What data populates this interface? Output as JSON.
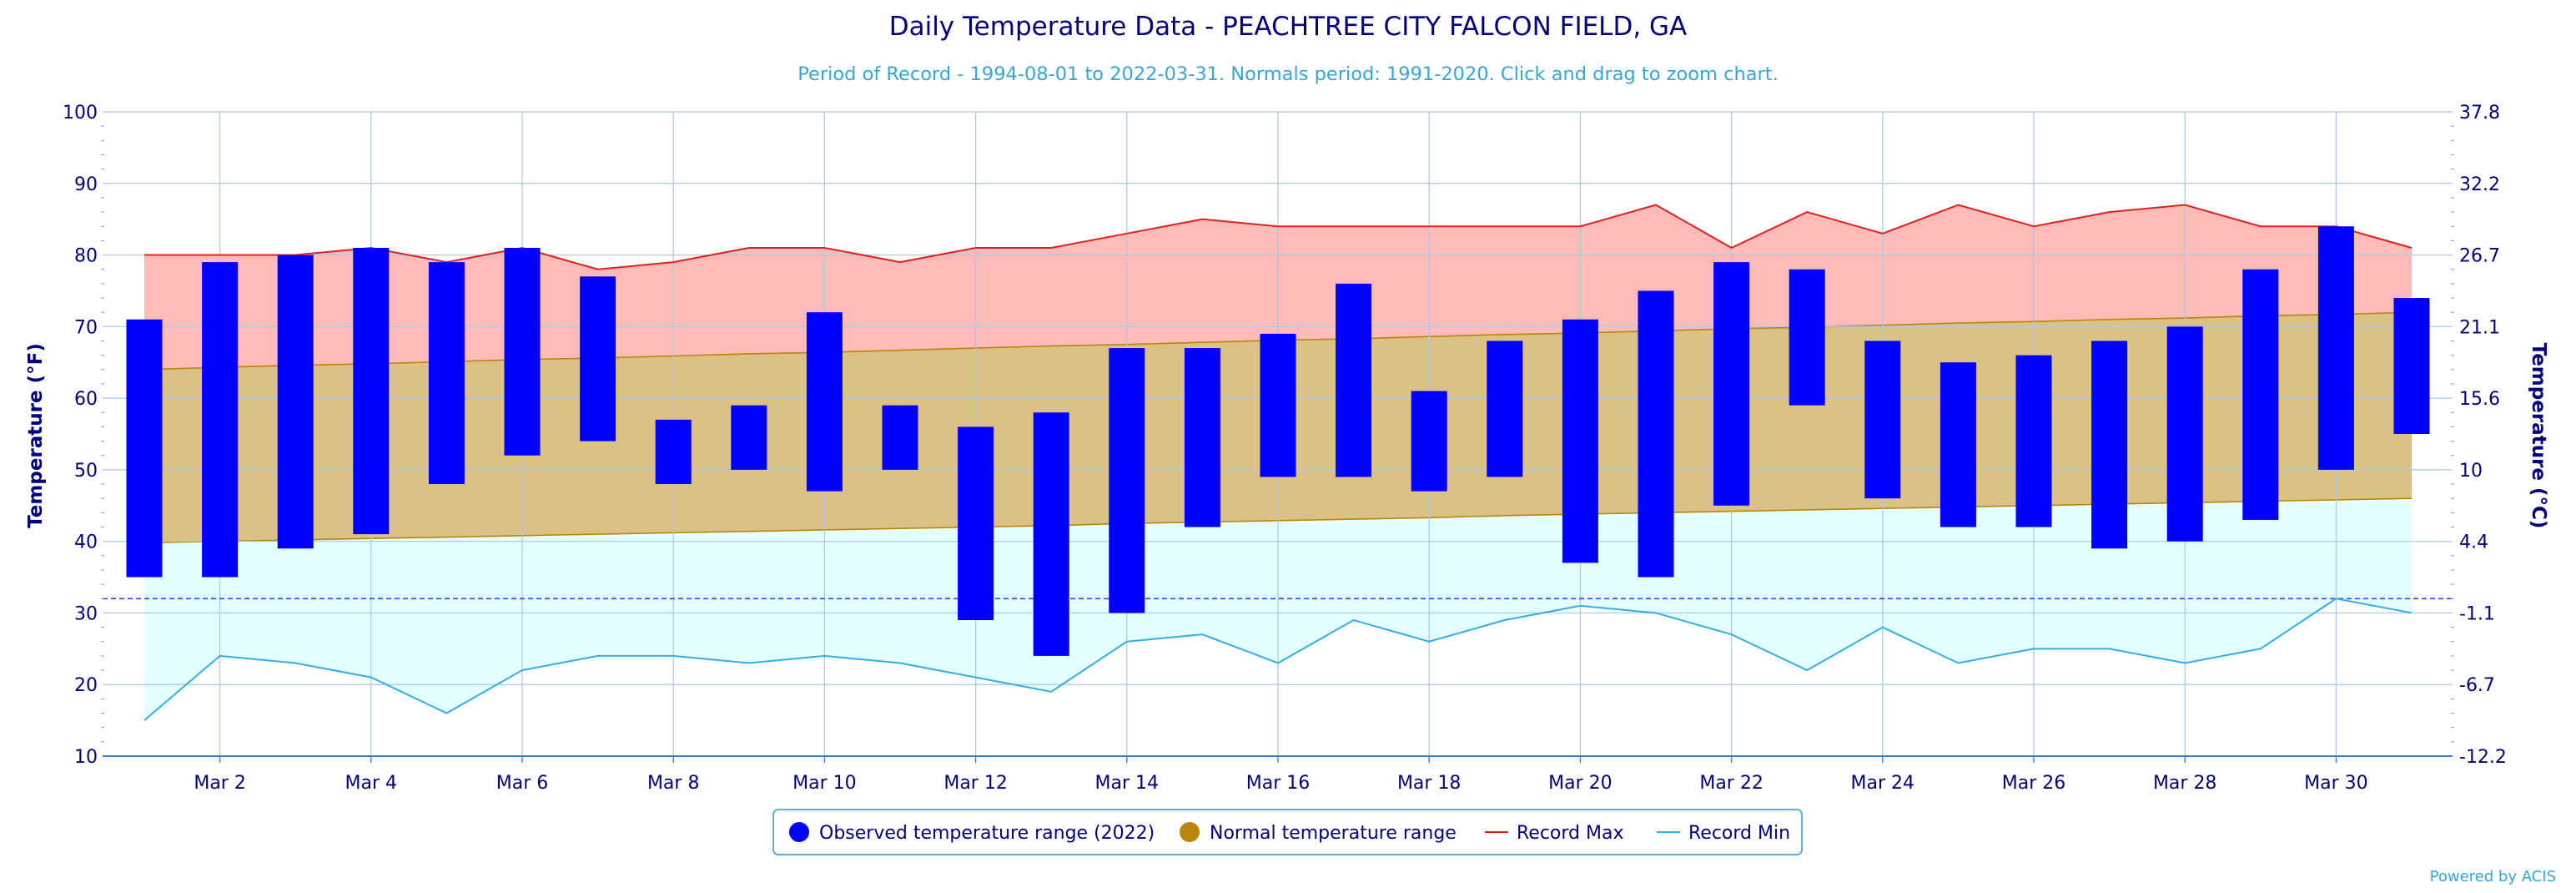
{
  "chart_data": {
    "type": "bar",
    "title": "Daily Temperature Data - PEACHTREE CITY FALCON FIELD, GA",
    "subtitle": "Period of Record - 1994-08-01 to 2022-03-31. Normals period: 1991-2020. Click and drag to zoom chart.",
    "ylabel": "Temperature (°F)",
    "ylabel_right": "Temperature (°C)",
    "ylim": [
      10,
      100
    ],
    "y_ticks": [
      10,
      20,
      30,
      40,
      50,
      60,
      70,
      80,
      90,
      100
    ],
    "y_right_ticks": [
      "-12.2",
      "-6.7",
      "-1.1",
      "4.4",
      "10",
      "15.6",
      "21.1",
      "26.7",
      "32.2",
      "37.8"
    ],
    "x_days": [
      1,
      2,
      3,
      4,
      5,
      6,
      7,
      8,
      9,
      10,
      11,
      12,
      13,
      14,
      15,
      16,
      17,
      18,
      19,
      20,
      21,
      22,
      23,
      24,
      25,
      26,
      27,
      28,
      29,
      30,
      31
    ],
    "x_tick_labels": [
      "Mar 2",
      "Mar 4",
      "Mar 6",
      "Mar 8",
      "Mar 10",
      "Mar 12",
      "Mar 14",
      "Mar 16",
      "Mar 18",
      "Mar 20",
      "Mar 22",
      "Mar 24",
      "Mar 26",
      "Mar 28",
      "Mar 30"
    ],
    "freezing_line": 32,
    "grid": true,
    "legend_position": "bottom-center",
    "series": [
      {
        "name": "Observed temperature range (2022)",
        "type": "range-bar",
        "color": "#0000ff",
        "low": [
          35,
          35,
          39,
          41,
          48,
          52,
          54,
          48,
          50,
          47,
          50,
          29,
          24,
          30,
          42,
          49,
          49,
          47,
          49,
          37,
          35,
          45,
          59,
          46,
          42,
          42,
          39,
          40,
          43,
          50,
          55
        ],
        "high": [
          71,
          79,
          80,
          81,
          79,
          81,
          77,
          57,
          59,
          72,
          59,
          56,
          58,
          67,
          67,
          69,
          76,
          61,
          68,
          71,
          75,
          79,
          78,
          68,
          65,
          66,
          68,
          70,
          78,
          84,
          74
        ]
      },
      {
        "name": "Normal temperature range",
        "type": "range-area",
        "color": "#b8860b",
        "low": [
          39.8,
          40.0,
          40.2,
          40.4,
          40.6,
          40.8,
          41.0,
          41.2,
          41.4,
          41.6,
          41.8,
          42.0,
          42.2,
          42.5,
          42.7,
          42.9,
          43.1,
          43.3,
          43.6,
          43.8,
          44.0,
          44.2,
          44.4,
          44.6,
          44.8,
          45.0,
          45.2,
          45.4,
          45.6,
          45.8,
          46.0
        ],
        "high": [
          64.0,
          64.3,
          64.6,
          64.8,
          65.1,
          65.4,
          65.6,
          65.9,
          66.2,
          66.4,
          66.7,
          67.0,
          67.3,
          67.5,
          67.8,
          68.1,
          68.3,
          68.6,
          68.9,
          69.1,
          69.4,
          69.7,
          69.9,
          70.2,
          70.5,
          70.7,
          71.0,
          71.2,
          71.5,
          71.7,
          72.0
        ]
      },
      {
        "name": "Record Max",
        "type": "line",
        "color": "#e32020",
        "values": [
          80,
          80,
          80,
          81,
          79,
          81,
          78,
          79,
          81,
          81,
          79,
          81,
          81,
          83,
          85,
          84,
          84,
          84,
          84,
          84,
          87,
          81,
          86,
          83,
          87,
          84,
          86,
          87,
          84,
          84,
          81
        ]
      },
      {
        "name": "Record Min",
        "type": "line",
        "color": "#33aee8",
        "values": [
          15,
          24,
          23,
          21,
          16,
          22,
          24,
          24,
          23,
          24,
          23,
          21,
          19,
          26,
          27,
          23,
          29,
          26,
          29,
          31,
          30,
          27,
          22,
          28,
          23,
          25,
          25,
          23,
          25,
          32,
          30
        ]
      }
    ]
  },
  "colors": {
    "title": "#00007f",
    "subtitle": "#36a6d9",
    "axis_text": "#00007f",
    "record_max_fill": "#ffbbb7",
    "normal_fill": "#dcc185",
    "record_min_fill": "#e3ffff",
    "grid": "#a7c8e8",
    "legend_border": "#5fb0e0",
    "credit": "#36a6d9"
  },
  "credit": "Powered by ACIS"
}
